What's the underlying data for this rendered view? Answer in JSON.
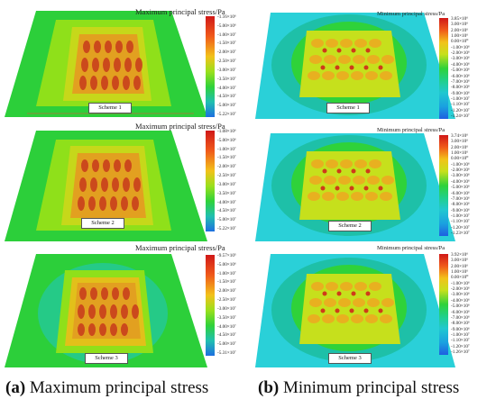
{
  "left_column": {
    "caption_letter": "(a)",
    "caption_text": " Maximum principal stress",
    "panels": [
      {
        "legend_title": "Maximum principal stress/Pa",
        "scheme_label": "Scheme 1",
        "ticks": [
          "-1.16×10⁶",
          "-5.00×10⁶",
          "-1.00×10⁷",
          "-1.50×10⁷",
          "-2.00×10⁷",
          "-2.50×10⁷",
          "-3.00×10⁷",
          "-3.50×10⁷",
          "-4.00×10⁷",
          "-4.50×10⁷",
          "-5.00×10⁷",
          "-5.22×10⁷"
        ]
      },
      {
        "legend_title": "Maximum principal stress/Pa",
        "scheme_label": "Scheme 2",
        "ticks": [
          "-1.08×10⁶",
          "-5.00×10⁶",
          "-1.00×10⁷",
          "-1.50×10⁷",
          "-2.00×10⁷",
          "-2.50×10⁷",
          "-3.00×10⁷",
          "-3.50×10⁷",
          "-4.00×10⁷",
          "-4.50×10⁷",
          "-5.00×10⁷",
          "-5.22×10⁷"
        ]
      },
      {
        "legend_title": "Maximum principal stress/Pa",
        "scheme_label": "Scheme 3",
        "ticks": [
          "-9.57×10⁵",
          "-5.00×10⁶",
          "-1.00×10⁷",
          "-1.50×10⁷",
          "-2.00×10⁷",
          "-2.50×10⁷",
          "-3.00×10⁷",
          "-3.50×10⁷",
          "-4.00×10⁷",
          "-4.50×10⁷",
          "-5.00×10⁷",
          "-5.31×10⁷"
        ]
      }
    ]
  },
  "right_column": {
    "caption_letter": "(b)",
    "caption_text": " Minimum principal stress",
    "panels": [
      {
        "legend_title": "Minimum principal stress/Pa",
        "scheme_label": "Scheme 1",
        "ticks": [
          "3.85×10⁶",
          "3.00×10⁶",
          "2.00×10⁶",
          "1.00×10⁶",
          "0.00×10⁰",
          "-1.00×10⁶",
          "-2.00×10⁶",
          "-3.00×10⁶",
          "-4.00×10⁶",
          "-5.00×10⁶",
          "-6.00×10⁶",
          "-7.00×10⁶",
          "-8.00×10⁶",
          "-9.00×10⁶",
          "-1.00×10⁷",
          "-1.10×10⁷",
          "-1.20×10⁷",
          "-1.24×10⁷"
        ]
      },
      {
        "legend_title": "Minimum principal stress/Pa",
        "scheme_label": "Scheme 2",
        "ticks": [
          "3.74×10⁶",
          "3.00×10⁶",
          "2.00×10⁶",
          "1.00×10⁶",
          "0.00×10⁰",
          "-1.00×10⁶",
          "-2.00×10⁶",
          "-3.00×10⁶",
          "-4.00×10⁶",
          "-5.00×10⁶",
          "-6.00×10⁶",
          "-7.00×10⁶",
          "-8.00×10⁶",
          "-9.00×10⁶",
          "-1.00×10⁷",
          "-1.10×10⁷",
          "-1.20×10⁷",
          "-1.23×10⁷"
        ]
      },
      {
        "legend_title": "Minimum principal stress/Pa",
        "scheme_label": "Scheme 3",
        "ticks": [
          "3.92×10⁶",
          "3.00×10⁶",
          "2.00×10⁶",
          "1.00×10⁶",
          "0.00×10⁰",
          "-1.00×10⁶",
          "-2.00×10⁶",
          "-3.00×10⁶",
          "-4.00×10⁶",
          "-5.00×10⁶",
          "-6.00×10⁶",
          "-7.00×10⁶",
          "-8.00×10⁶",
          "-9.00×10⁶",
          "-1.00×10⁷",
          "-1.10×10⁷",
          "-1.20×10⁷",
          "-1.26×10⁷"
        ]
      }
    ]
  }
}
